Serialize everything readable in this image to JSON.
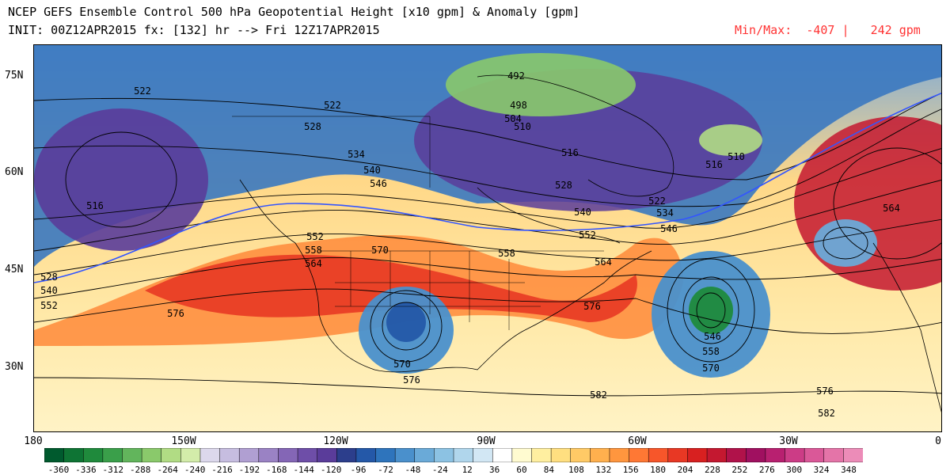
{
  "header": {
    "title_line1": "NCEP GEFS Ensemble Control 500 hPa Geopotential Height [x10 gpm] & Anomaly [gpm]",
    "title_line2": "INIT: 00Z12APR2015 fx: [132] hr --> Fri 12Z17APR2015",
    "minmax_label": "Min/Max:",
    "min_value": "-407",
    "max_value": "242 gpm"
  },
  "axes": {
    "lat_labels": [
      "75N",
      "60N",
      "45N",
      "30N"
    ],
    "lon_labels": [
      "180",
      "150W",
      "120W",
      "90W",
      "60W",
      "30W",
      "0"
    ]
  },
  "contour_labels": [
    "522",
    "522",
    "528",
    "534",
    "540",
    "546",
    "516",
    "492",
    "498",
    "504",
    "510",
    "516",
    "516",
    "510",
    "528",
    "540",
    "522",
    "534",
    "546",
    "552",
    "552",
    "558",
    "564",
    "570",
    "558",
    "564",
    "576",
    "576",
    "570",
    "576",
    "546",
    "558",
    "570",
    "576",
    "582",
    "582",
    "564",
    "528",
    "540",
    "552"
  ],
  "colorbar": {
    "labels": [
      "-360",
      "-336",
      "-312",
      "-288",
      "-264",
      "-240",
      "-216",
      "-192",
      "-168",
      "-144",
      "-120",
      "-96",
      "-72",
      "-48",
      "-24",
      "12",
      "36",
      "60",
      "84",
      "108",
      "132",
      "156",
      "180",
      "204",
      "228",
      "252",
      "276",
      "300",
      "324",
      "348"
    ],
    "colors": [
      "#005a2e",
      "#0e7434",
      "#1f8a3c",
      "#3a9f4a",
      "#62b55c",
      "#8ac96b",
      "#b1dc84",
      "#d3ecaa",
      "#dcd8ec",
      "#c6bde0",
      "#b09fd2",
      "#9a82c4",
      "#8466b6",
      "#6e4ea8",
      "#5a3c9a",
      "#2c3e8c",
      "#2458a8",
      "#2e74bc",
      "#4a90cc",
      "#6aaad8",
      "#8cc2e3",
      "#b0d6ec",
      "#d2e7f4",
      "#ffffff",
      "#fffbd0",
      "#ffefa0",
      "#ffdf80",
      "#ffca66",
      "#ffb04e",
      "#ff963e",
      "#ff7834",
      "#f7562a",
      "#e83824",
      "#d82020",
      "#c41830",
      "#b0124a",
      "#a01060",
      "#b82070",
      "#cc3c86",
      "#da5898",
      "#e474a8",
      "#ec8cb8"
    ]
  }
}
